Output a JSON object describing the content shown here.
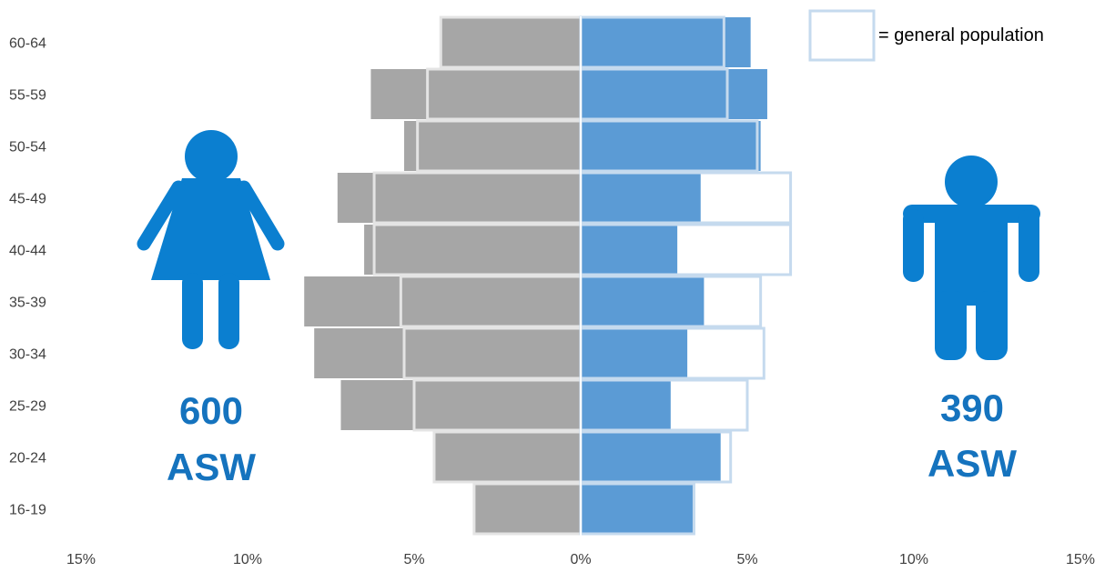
{
  "chart_data": {
    "type": "bar",
    "orientation": "horizontal",
    "subtype": "population pyramid",
    "categories": [
      "16-19",
      "20-24",
      "25-29",
      "30-34",
      "35-39",
      "40-44",
      "45-49",
      "50-54",
      "55-59",
      "60-64"
    ],
    "x_ticks": [
      "15%",
      "10%",
      "5%",
      "0%",
      "5%",
      "10%",
      "15%"
    ],
    "xlim": [
      -15,
      15
    ],
    "series": [
      {
        "values_women": [
          3.2,
          4.4,
          7.2,
          8.0,
          8.3,
          6.5,
          7.3,
          5.3,
          6.3,
          4.2
        ]
      },
      {
        "values_men": [
          3.4,
          4.2,
          2.7,
          3.2,
          3.7,
          2.9,
          3.6,
          5.4,
          5.6,
          5.1
        ]
      },
      {
        "name": "general population",
        "values_women": [
          3.2,
          4.4,
          5.0,
          5.3,
          5.4,
          6.2,
          6.2,
          4.9,
          4.6,
          4.2
        ],
        "values_men": [
          3.4,
          4.5,
          5.0,
          5.5,
          5.4,
          6.3,
          6.3,
          5.3,
          4.4,
          4.3
        ]
      }
    ],
    "legend": {
      "label": "= general population",
      "position": "top-right"
    },
    "left_group": {
      "count": "600",
      "label": "ASW",
      "icon": "woman-icon"
    },
    "right_group": {
      "count": "390",
      "label": "ASW",
      "icon": "man-icon"
    },
    "colors": {
      "women_bar": "#A6A6A6",
      "men_bar": "#5B9BD5",
      "outline_women": "#E4E4E4",
      "outline_men": "#C5DAEE",
      "icon": "#0B7FD0",
      "count_text": "#1573BE",
      "tick_text": "#404040"
    },
    "grid": false
  }
}
